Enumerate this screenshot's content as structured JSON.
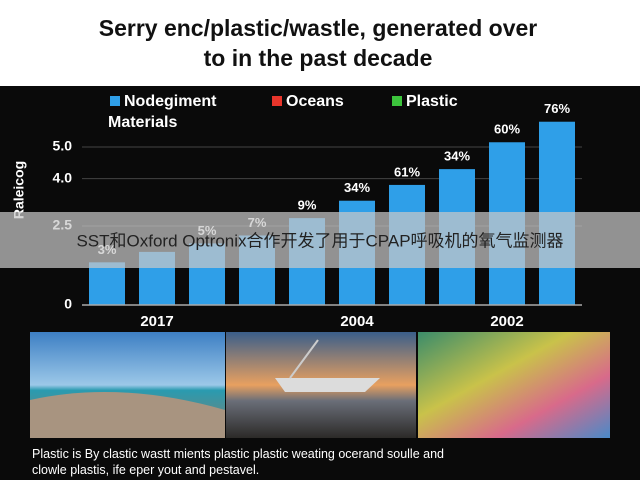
{
  "chart_data": {
    "type": "bar",
    "title": "Serry enc/plastic/wastle, generated over to in the past decade",
    "y_label": "Raleicog",
    "legend": [
      "Nodegiment",
      "Oceans",
      "Plastic Materials"
    ],
    "legend_colors": [
      "#2f9fe8",
      "#e8352b",
      "#3cc43c"
    ],
    "categories": [
      null,
      "2017",
      null,
      null,
      null,
      "2004",
      null,
      null,
      "2002",
      null
    ],
    "values": [
      1.35,
      1.68,
      1.95,
      2.2,
      2.75,
      3.3,
      3.8,
      4.3,
      5.15,
      5.8
    ],
    "bar_labels": [
      "3%",
      null,
      "5%",
      "7%",
      "9%",
      "34%",
      "61%",
      "34%",
      "60%",
      "76%"
    ],
    "color": "#2f9fe8",
    "ylim": [
      0,
      6
    ],
    "yticks": [
      0,
      {
        "value": 2.5,
        "label": "2.5"
      },
      {
        "value": 4,
        "label": "4.0"
      },
      {
        "value": 5,
        "label": "5.0"
      }
    ],
    "grid": true,
    "caption": "Plastic is By clastic wastt mients plastic plastic weating ocerand soulle and clowle plastis, ife eper yout and pestavel.",
    "banner": "SST和Oxford Optronix合作开发了用于CPAP呼吸机的氧气监测器"
  }
}
